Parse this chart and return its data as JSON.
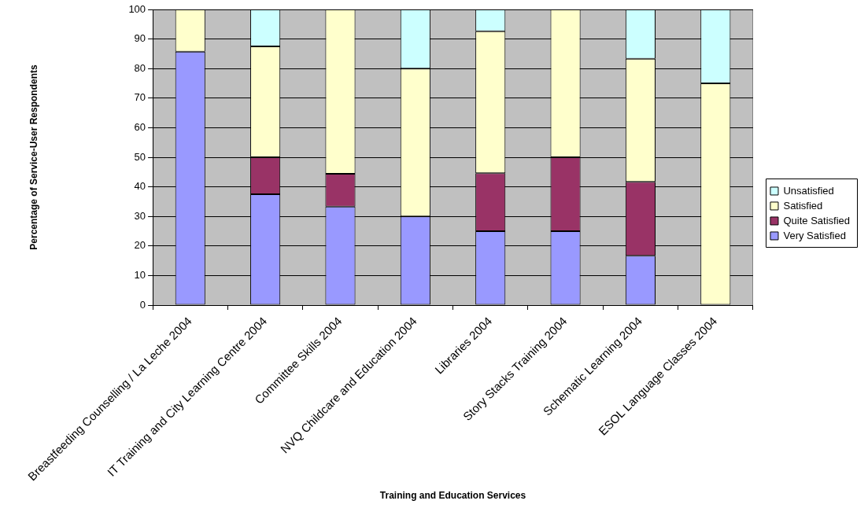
{
  "chart_data": {
    "type": "bar",
    "stacked": true,
    "xlabel": "Training and Education Services",
    "ylabel": "Percentage of Service-User Respondents",
    "categories": [
      "Breastfeeding Counselling / La Leche 2004",
      "IT Training and City Learning Centre 2004",
      "Committee Skills 2004",
      "NVQ Childcare and Education 2004",
      "Libraries 2004",
      "Story Stacks Training 2004",
      "Schematic Learning 2004",
      "ESOL Language Classes 2004"
    ],
    "series": [
      {
        "name": "Very Satisfied",
        "color": "#9999ff",
        "values": [
          85.7,
          37.5,
          33.3,
          30,
          25,
          25,
          16.7,
          0
        ]
      },
      {
        "name": "Quite Satisfied",
        "color": "#993366",
        "values": [
          0,
          12.5,
          11.1,
          0,
          19.6,
          25,
          25,
          0
        ]
      },
      {
        "name": "Satisfied",
        "color": "#ffffcc",
        "values": [
          14.3,
          37.5,
          55.6,
          50,
          48,
          50,
          41.6,
          75
        ]
      },
      {
        "name": "Unsatisfied",
        "color": "#ccffff",
        "values": [
          0,
          12.5,
          0,
          20,
          7.4,
          0,
          16.7,
          25
        ]
      }
    ],
    "ylim": [
      0,
      100
    ],
    "yticks": [
      0,
      10,
      20,
      30,
      40,
      50,
      60,
      70,
      80,
      90,
      100
    ],
    "grid": "y",
    "legend": "right"
  }
}
